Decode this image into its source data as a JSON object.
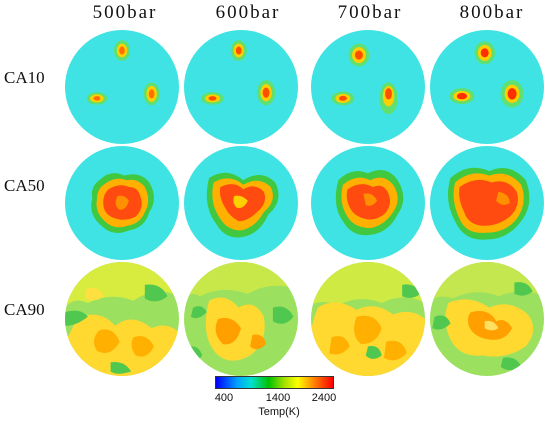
{
  "columns": [
    "500bar",
    "600bar",
    "700bar",
    "800bar"
  ],
  "rows": [
    "CA10",
    "CA50",
    "CA90"
  ],
  "colorbar": {
    "title": "Temp(K)",
    "ticks": [
      "400",
      "1400",
      "2400"
    ],
    "range": [
      400,
      2400
    ],
    "colors": [
      "#0000ff",
      "#00a0ff",
      "#00e0d0",
      "#00c000",
      "#a0e000",
      "#ffff00",
      "#ff8000",
      "#ff0000"
    ]
  },
  "colors": {
    "background_field": "#3ee0e0",
    "cool": "#40d8a0",
    "mid": "#30c040",
    "warm": "#c0e020",
    "hot": "#ffe000",
    "hotter": "#ff9000",
    "hottest": "#ff3000"
  }
}
